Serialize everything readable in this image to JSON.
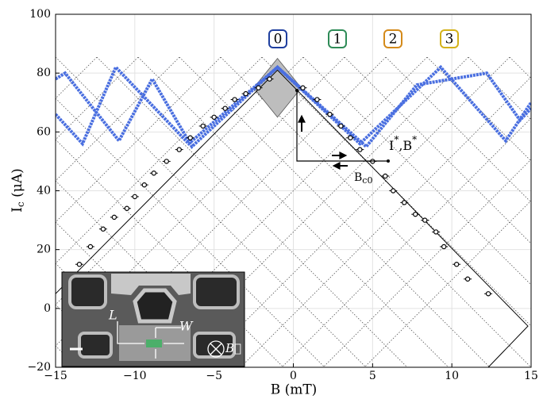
{
  "chart_data": {
    "type": "scatter",
    "xlabel": "B (mT)",
    "ylabel": [
      "I",
      "c",
      " (μA)"
    ],
    "xlim": [
      -15,
      15
    ],
    "ylim": [
      -20,
      100
    ],
    "xticks": [
      {
        "value": -15,
        "label": "−15"
      },
      {
        "value": -10,
        "label": "−10"
      },
      {
        "value": -5,
        "label": "−5"
      },
      0,
      5,
      10,
      15
    ],
    "yticks": [
      {
        "value": -20,
        "label": "−20"
      },
      0,
      20,
      40,
      60,
      80,
      100
    ],
    "grid": true,
    "series": [
      {
        "color": "#4a6fe0",
        "mode": "line",
        "x": [
          -15,
          -13.3,
          -11.2,
          -6.6,
          -1,
          4.2,
          9.3,
          13.4,
          15
        ],
        "values": [
          66,
          56,
          82,
          56,
          82,
          56,
          82,
          57,
          70
        ]
      },
      {
        "color": "#4a6fe0",
        "mode": "line",
        "x": [
          -15,
          -14.4,
          -11,
          -8.9,
          -6.4,
          -1,
          4.6,
          7.8,
          12.2,
          14.3,
          15
        ],
        "values": [
          78,
          80,
          57,
          78,
          55,
          82,
          55,
          76,
          80,
          64,
          68
        ]
      },
      {
        "color": "#000000",
        "mode": "line",
        "x": [
          -15,
          -1,
          14.8,
          12.3
        ],
        "values": [
          5,
          81,
          -6,
          -20
        ]
      },
      {
        "color": "#000000",
        "mode": "circle",
        "x": [
          -13.5,
          -12.8,
          -12,
          -11.3,
          -10.5,
          -10,
          -9.4,
          -8.8,
          -8,
          -7.2,
          -6.5,
          -5.7,
          -5,
          -4.3,
          -3.7,
          -3,
          -2.2,
          -1.5,
          0.6,
          1.5,
          2.3,
          3,
          3.6,
          4.2,
          5,
          5.8,
          6.3,
          7,
          7.7,
          8.3,
          9,
          9.5,
          10.3,
          11,
          12.3
        ],
        "values": [
          15,
          21,
          27,
          31,
          34,
          38,
          42,
          46,
          50,
          54,
          58,
          62,
          65,
          68,
          71,
          73,
          75,
          78,
          75,
          71,
          66,
          62,
          58,
          54,
          50,
          45,
          40,
          36,
          32,
          30,
          26,
          21,
          15,
          10,
          5
        ]
      }
    ],
    "shaded_region": {
      "x": [
        -2.5,
        -1,
        0.5,
        -1
      ],
      "y": [
        75,
        85,
        75,
        65
      ]
    },
    "mode_labels": [
      "0",
      "1",
      "2",
      "3"
    ],
    "mode_colors": [
      "#1f3f9f",
      "#2e8b57",
      "#d48a1a",
      "#d4b21a"
    ],
    "annotation_critical": [
      "I",
      "*",
      ",B",
      "*"
    ],
    "annotation_bc0": [
      "B",
      "c0"
    ],
    "inset_labels": {
      "length": "L",
      "width": "W",
      "field": "B⃗"
    }
  }
}
